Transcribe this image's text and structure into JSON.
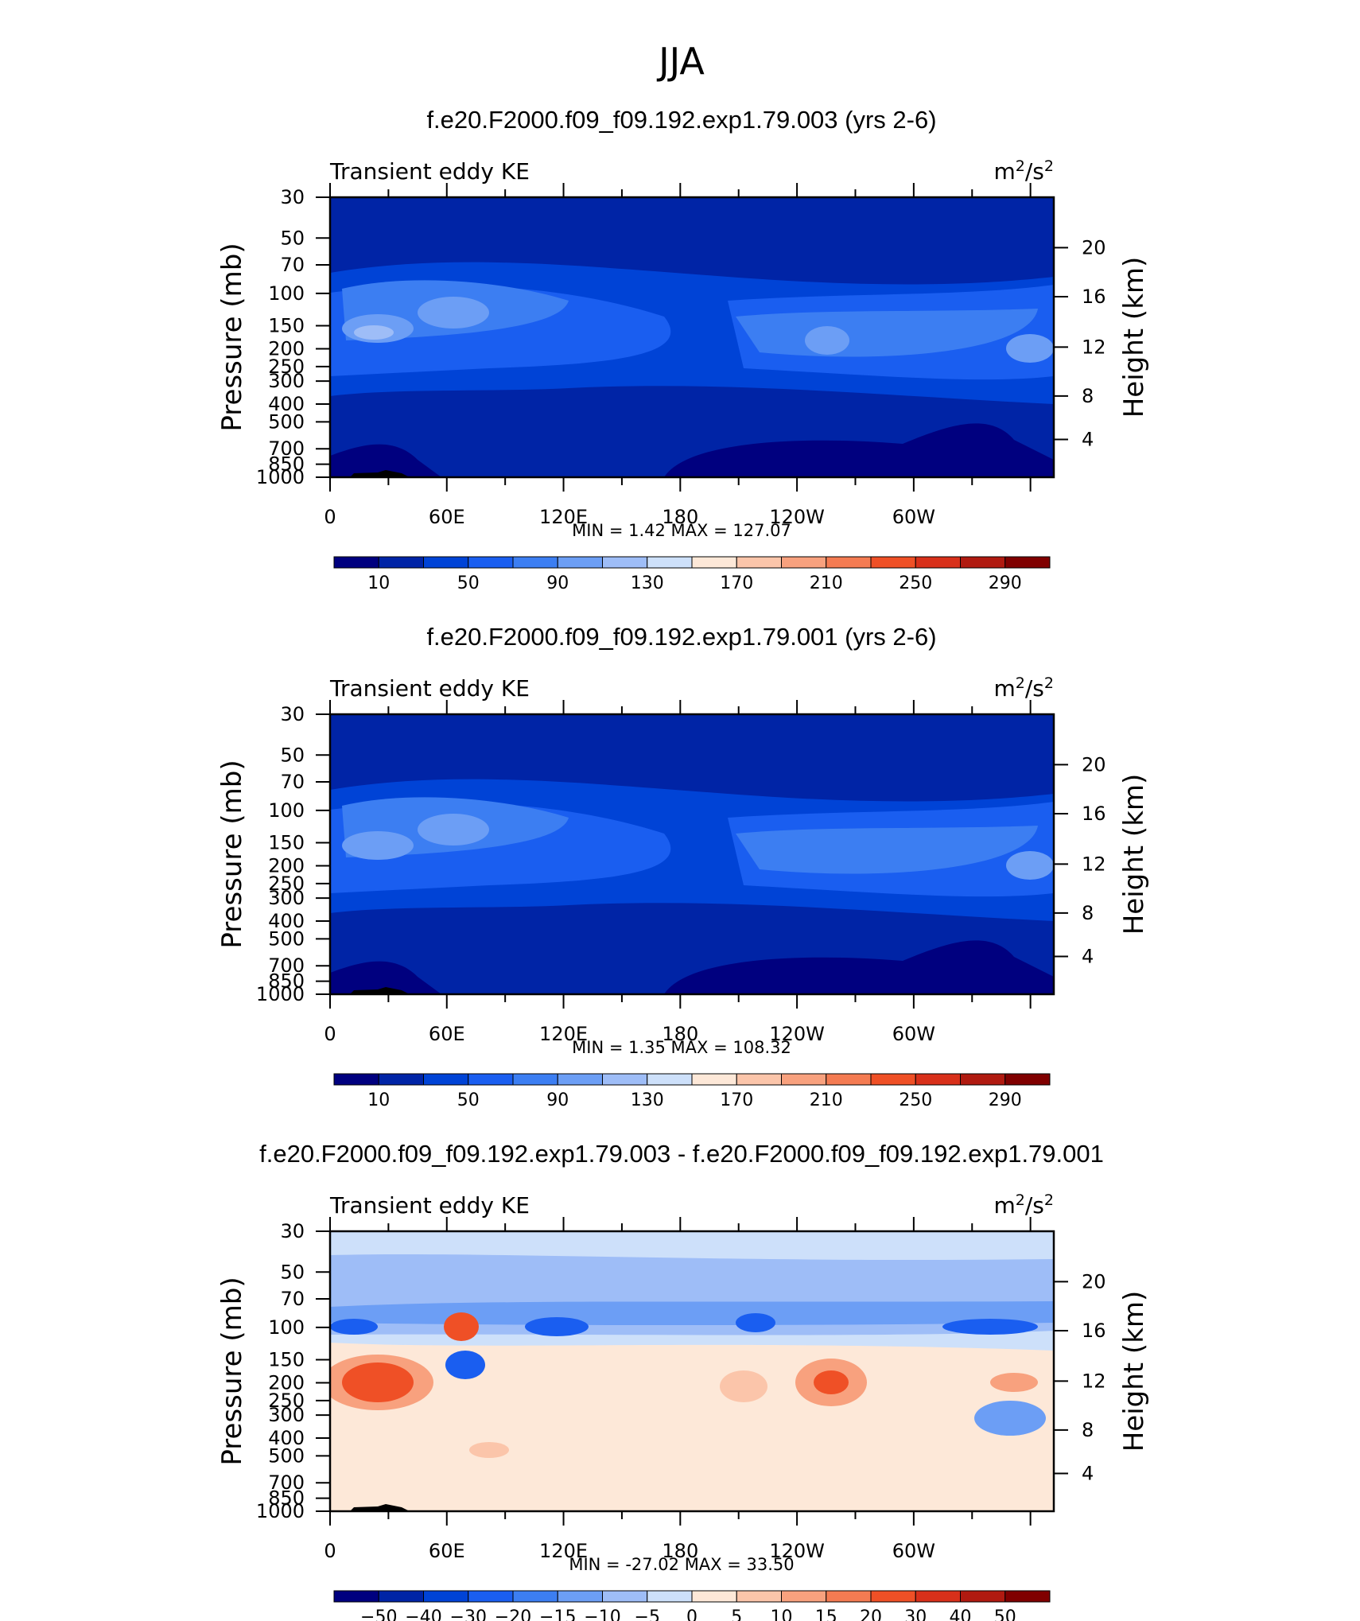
{
  "page_title": "JJA",
  "chart_data": [
    {
      "type": "heatmap",
      "title": "f.e20.F2000.f09_f09.192.exp1.79.003 (yrs 2-6)",
      "variable_label": "Transient eddy KE",
      "units": "m²/s²",
      "ylabel": "Pressure (mb)",
      "ylabel_right": "Height (km)",
      "x_ticks": [
        "0",
        "60E",
        "120E",
        "180",
        "120W",
        "60W"
      ],
      "y_ticks": [
        "30",
        "50",
        "70",
        "100",
        "150",
        "200",
        "250",
        "300",
        "400",
        "500",
        "700",
        "850",
        "1000"
      ],
      "y2_ticks": [
        "20",
        "16",
        "12",
        "8",
        "4"
      ],
      "stats": {
        "min_label": "MIN =",
        "min": "1.42",
        "max_label": "MAX =",
        "max": "127.07"
      },
      "colorbar_labels": [
        "10",
        "50",
        "90",
        "130",
        "170",
        "210",
        "250",
        "290"
      ],
      "colors": [
        "#00007f",
        "#0024a6",
        "#0043d6",
        "#1a5ef0",
        "#3c7ef2",
        "#6c9ef5",
        "#9ebdf7",
        "#cde0fa",
        "#fde8d8",
        "#fbc5aa",
        "#f8a17e",
        "#f47b52",
        "#ef5026",
        "#d8301a",
        "#b01a10",
        "#800000"
      ]
    },
    {
      "type": "heatmap",
      "title": "f.e20.F2000.f09_f09.192.exp1.79.001 (yrs 2-6)",
      "variable_label": "Transient eddy KE",
      "units": "m²/s²",
      "ylabel": "Pressure (mb)",
      "ylabel_right": "Height (km)",
      "x_ticks": [
        "0",
        "60E",
        "120E",
        "180",
        "120W",
        "60W"
      ],
      "y_ticks": [
        "30",
        "50",
        "70",
        "100",
        "150",
        "200",
        "250",
        "300",
        "400",
        "500",
        "700",
        "850",
        "1000"
      ],
      "y2_ticks": [
        "20",
        "16",
        "12",
        "8",
        "4"
      ],
      "stats": {
        "min_label": "MIN =",
        "min": "1.35",
        "max_label": "MAX =",
        "max": "108.32"
      },
      "colorbar_labels": [
        "10",
        "50",
        "90",
        "130",
        "170",
        "210",
        "250",
        "290"
      ],
      "colors": [
        "#00007f",
        "#0024a6",
        "#0043d6",
        "#1a5ef0",
        "#3c7ef2",
        "#6c9ef5",
        "#9ebdf7",
        "#cde0fa",
        "#fde8d8",
        "#fbc5aa",
        "#f8a17e",
        "#f47b52",
        "#ef5026",
        "#d8301a",
        "#b01a10",
        "#800000"
      ]
    },
    {
      "type": "heatmap",
      "title": "f.e20.F2000.f09_f09.192.exp1.79.003 - f.e20.F2000.f09_f09.192.exp1.79.001",
      "variable_label": "Transient eddy KE",
      "units": "m²/s²",
      "ylabel": "Pressure (mb)",
      "ylabel_right": "Height (km)",
      "x_ticks": [
        "0",
        "60E",
        "120E",
        "180",
        "120W",
        "60W"
      ],
      "y_ticks": [
        "30",
        "50",
        "70",
        "100",
        "150",
        "200",
        "250",
        "300",
        "400",
        "500",
        "700",
        "850",
        "1000"
      ],
      "y2_ticks": [
        "20",
        "16",
        "12",
        "8",
        "4"
      ],
      "stats": {
        "min_label": "MIN =",
        "min": "-27.02",
        "max_label": "MAX =",
        "max": "33.50"
      },
      "colorbar_labels": [
        "−50",
        "−40",
        "−30",
        "−20",
        "−15",
        "−10",
        "−5",
        "0",
        "5",
        "10",
        "15",
        "20",
        "30",
        "40",
        "50"
      ],
      "colors": [
        "#00007f",
        "#0024a6",
        "#0043d6",
        "#1a5ef0",
        "#3c7ef2",
        "#6c9ef5",
        "#9ebdf7",
        "#cde0fa",
        "#fde8d8",
        "#fbc5aa",
        "#f8a17e",
        "#f47b52",
        "#ef5026",
        "#d8301a",
        "#b01a10",
        "#800000"
      ]
    }
  ]
}
